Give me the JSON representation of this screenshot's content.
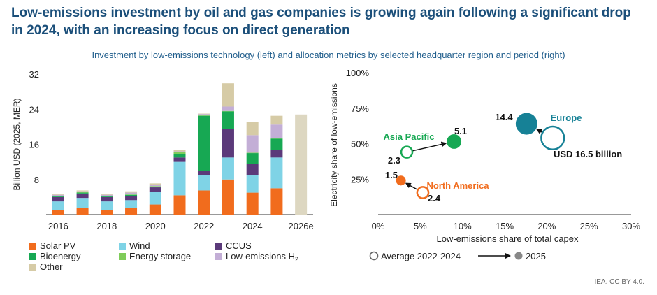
{
  "title": "Low-emissions investment by oil and gas companies is growing again following a significant drop in 2024, with an increasing focus on direct generation",
  "subtitle": "Investment by low-emissions technology (left) and allocation metrics by selected headquarter region and period (right)",
  "source": "IEA. CC BY 4.0.",
  "colors": {
    "solar_pv": "#f16c1d",
    "wind": "#7fd3e6",
    "ccus": "#5b3a7a",
    "bioenergy": "#17a853",
    "energy_storage": "#7fcc5a",
    "hydrogen": "#c3aed6",
    "other": "#d6cba6",
    "forecast": "#ddd7c1",
    "europe": "#168196",
    "asia_pacific": "#17a853",
    "north_america": "#f16c1d",
    "axis_text": "#222222"
  },
  "chart_data": [
    {
      "type": "bar",
      "stacked": true,
      "ylabel": "Billion USD (2025, MER)",
      "ylim": [
        0,
        32
      ],
      "yticks": [
        8,
        16,
        24,
        32
      ],
      "grid": false,
      "categories": [
        "2016",
        "2017",
        "2018",
        "2019",
        "2020",
        "2021",
        "2022",
        "2023",
        "2024",
        "2025",
        "2026e"
      ],
      "xtick_labels": [
        "2016",
        "2018",
        "2020",
        "2022",
        "2024",
        "2026e"
      ],
      "legend_position": "bottom",
      "series": [
        {
          "name": "Solar PV",
          "key": "solar_pv",
          "values": [
            1.0,
            1.5,
            1.0,
            1.5,
            2.3,
            4.4,
            5.5,
            8.0,
            5.0,
            6.0,
            0
          ]
        },
        {
          "name": "Wind",
          "key": "wind",
          "values": [
            2.0,
            2.3,
            2.0,
            1.8,
            2.9,
            7.6,
            3.5,
            5.0,
            4.0,
            7.0,
            0
          ]
        },
        {
          "name": "CCUS",
          "key": "ccus",
          "values": [
            1.0,
            1.0,
            1.0,
            1.0,
            1.0,
            1.0,
            1.0,
            6.5,
            2.5,
            1.8,
            0
          ]
        },
        {
          "name": "Bioenergy",
          "key": "bioenergy",
          "values": [
            0.2,
            0.2,
            0.2,
            0.2,
            0.2,
            0.8,
            12.5,
            4.0,
            2.5,
            2.5,
            0
          ]
        },
        {
          "name": "Energy storage",
          "key": "energy_storage",
          "values": [
            0.1,
            0.1,
            0.1,
            0.1,
            0.1,
            0.4,
            0.1,
            0.1,
            0.1,
            0.2,
            0
          ]
        },
        {
          "name": "Low-emissions H",
          "name_subscript": "2",
          "key": "hydrogen",
          "values": [
            0.2,
            0.2,
            0.2,
            0.4,
            0.3,
            0.2,
            0.3,
            1.0,
            4.0,
            3.0,
            0
          ]
        },
        {
          "name": "Other",
          "key": "other",
          "values": [
            0.2,
            0.2,
            0.2,
            0.3,
            0.3,
            0.3,
            0.1,
            5.3,
            3.0,
            2.0,
            22.8
          ]
        }
      ]
    },
    {
      "type": "scatter",
      "xlabel": "Low-emissions share of total capex",
      "ylabel": "Electricity share of low-emissions",
      "xlim": [
        0,
        30
      ],
      "ylim": [
        0,
        100
      ],
      "xticks": [
        "0%",
        "5%",
        "10%",
        "15%",
        "20%",
        "25%",
        "30%"
      ],
      "yticks": [
        "25%",
        "50%",
        "75%",
        "100%"
      ],
      "grid": false,
      "legend": {
        "average_label": "Average 2022-2024",
        "latest_label": "2025"
      },
      "regions": [
        {
          "name": "Europe",
          "key": "europe",
          "avg": {
            "x": 20.7,
            "y": 54,
            "value": 16.5,
            "label": "USD 16.5 billion"
          },
          "latest": {
            "x": 17.6,
            "y": 64,
            "value": 14.4,
            "label": "14.4"
          }
        },
        {
          "name": "Asia Pacific",
          "key": "asia_pacific",
          "avg": {
            "x": 3.4,
            "y": 44,
            "value": 2.3,
            "label": "2.3"
          },
          "latest": {
            "x": 9.0,
            "y": 51.5,
            "value": 5.1,
            "label": "5.1"
          }
        },
        {
          "name": "North America",
          "key": "north_america",
          "avg": {
            "x": 5.3,
            "y": 15.5,
            "value": 2.4,
            "label": "2.4"
          },
          "latest": {
            "x": 2.7,
            "y": 24,
            "value": 1.5,
            "label": "1.5"
          }
        }
      ]
    }
  ]
}
